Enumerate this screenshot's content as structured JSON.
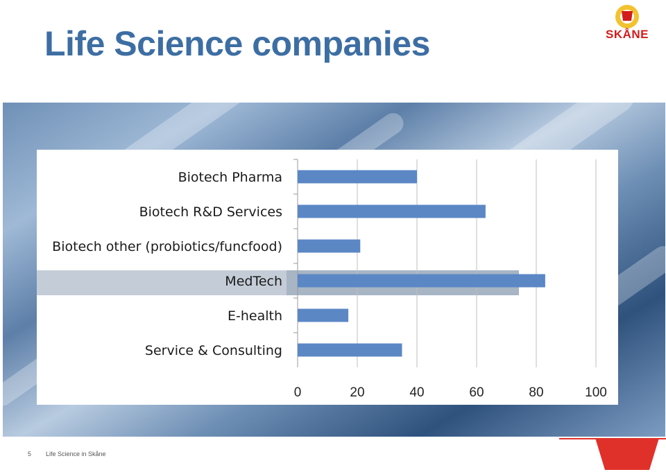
{
  "slide": {
    "title": "Life Science companies",
    "footer_page": "5",
    "footer_text": "Life Science in Skåne",
    "logo_text": "SKÅNE",
    "title_color": "#3d6ea3",
    "accent_color": "#e0302a"
  },
  "chart_data": {
    "type": "bar",
    "orientation": "horizontal",
    "categories": [
      "Biotech Pharma",
      "Biotech R&D Services",
      "Biotech other (probiotics/funcfood)",
      "MedTech",
      "E-health",
      "Service & Consulting"
    ],
    "values": [
      40,
      63,
      21,
      83,
      17,
      35
    ],
    "xlim": [
      0,
      100
    ],
    "xticks": [
      "0",
      "20",
      "40",
      "60",
      "80",
      "100"
    ],
    "grid": true,
    "bar_color": "#5b87c5"
  }
}
